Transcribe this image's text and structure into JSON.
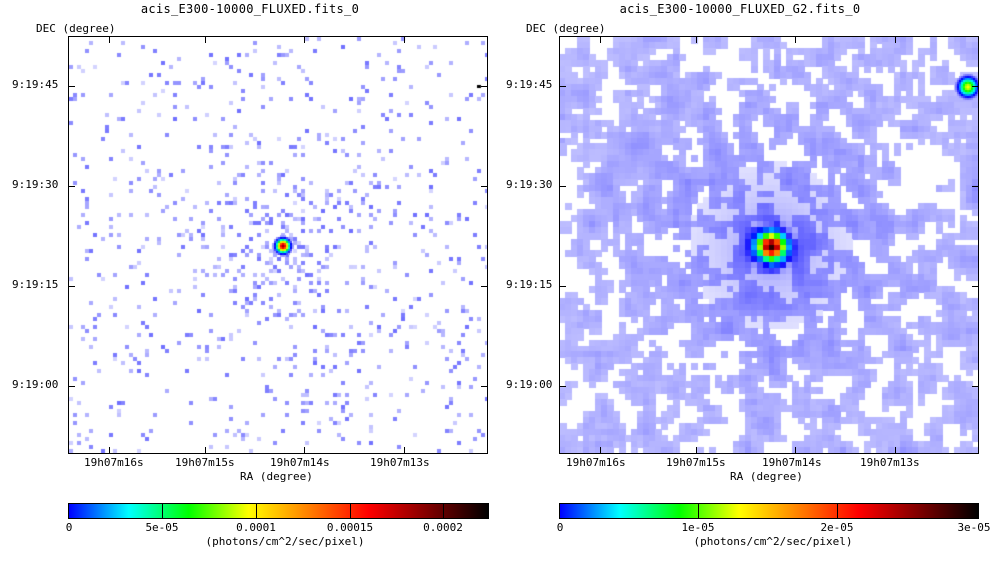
{
  "panels": [
    {
      "title": "acis_E300-10000_FLUXED.fits_0",
      "dec_label": "DEC (degree)",
      "ra_label": "RA (degree)",
      "dec_ticks": [
        "9:19:45",
        "9:19:30",
        "9:19:15",
        "9:19:00"
      ],
      "ra_ticks": [
        "19h07m16s",
        "19h07m15s",
        "19h07m14s",
        "19h07m13s"
      ],
      "colorbar_ticks": [
        "0",
        "5e-05",
        "0.0001",
        "0.00015",
        "0.0002"
      ],
      "colorbar_unit": "(photons/cm^2/sec/pixel)"
    },
    {
      "title": "acis_E300-10000_FLUXED_G2.fits_0",
      "dec_label": "DEC (degree)",
      "ra_label": "RA (degree)",
      "dec_ticks": [
        "9:19:45",
        "9:19:30",
        "9:19:15",
        "9:19:00"
      ],
      "ra_ticks": [
        "19h07m16s",
        "19h07m15s",
        "19h07m14s",
        "19h07m13s"
      ],
      "colorbar_ticks": [
        "0",
        "1e-05",
        "2e-05",
        "3e-05"
      ],
      "colorbar_unit": "(photons/cm^2/sec/pixel)"
    }
  ],
  "colors": {
    "colormap": [
      "#ffffff",
      "#0000ff",
      "#00ffff",
      "#00ff00",
      "#ffff00",
      "#ff8000",
      "#ff0000",
      "#800000",
      "#000000"
    ]
  }
}
